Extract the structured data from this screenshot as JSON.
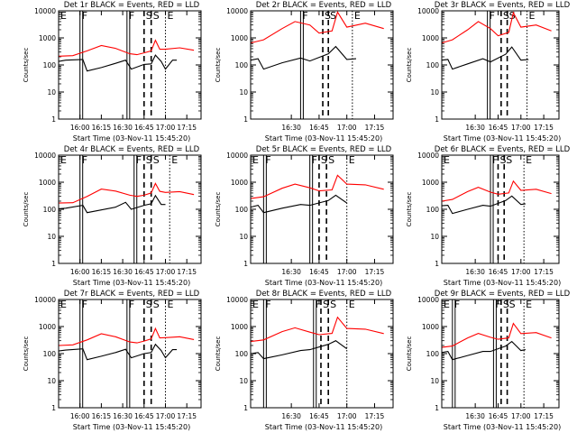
{
  "chart_data": [
    {
      "type": "line",
      "title": "Det 1r BLACK = Events, RED = LLD",
      "xlabel": "Start Time (03-Nov-11 15:45:20)",
      "ylabel": "Counts/sec",
      "x_ticks": [
        "16:00",
        "16:15",
        "16:30",
        "16:45",
        "17:00",
        "17:15"
      ],
      "y_ticks": [
        "1",
        "10",
        "100",
        "1000",
        "10000"
      ],
      "y_scale": "log",
      "ylim": [
        1,
        10000
      ],
      "markers": [
        {
          "text": "E",
          "time": "15:45"
        },
        {
          "text": "F",
          "time": "16:00"
        },
        {
          "text": "F",
          "time": "16:33"
        },
        {
          "text": "S",
          "time": "16:45"
        },
        {
          "text": "S",
          "time": "16:50"
        },
        {
          "text": "E",
          "time": "17:00"
        }
      ],
      "series": [
        {
          "name": "LLD",
          "color": "#ff0000",
          "x": [
            "15:45",
            "15:55",
            "16:05",
            "16:15",
            "16:25",
            "16:35",
            "16:40",
            "16:45",
            "16:50",
            "16:53",
            "16:56",
            "17:00",
            "17:10",
            "17:20"
          ],
          "y": [
            210,
            220,
            330,
            520,
            410,
            260,
            240,
            280,
            330,
            820,
            380,
            380,
            430,
            350
          ]
        },
        {
          "name": "Events",
          "color": "#000000",
          "x": [
            "15:45",
            "15:50",
            "16:02",
            "16:05",
            "16:15",
            "16:25",
            "16:32",
            "16:36",
            "16:45",
            "16:50",
            "16:53",
            "16:57",
            "17:00",
            "17:05",
            "17:08"
          ],
          "y": [
            135,
            150,
            160,
            60,
            80,
            115,
            150,
            70,
            105,
            110,
            230,
            135,
            70,
            150,
            150
          ]
        }
      ]
    },
    {
      "type": "line",
      "title": "Det 2r BLACK = Events, RED = LLD",
      "xlabel": "Start Time (03-Nov-11 15:45:20)",
      "ylabel": "Counts/sec",
      "x_ticks": [
        "16:30",
        "16:45",
        "17:00",
        "17:15"
      ],
      "y_ticks": [
        "1",
        "10",
        "100",
        "1000",
        "10000"
      ],
      "y_scale": "log",
      "ylim": [
        1,
        10000
      ],
      "markers": [
        {
          "text": "F",
          "time": "16:35"
        },
        {
          "text": "S",
          "time": "16:47"
        },
        {
          "text": "S",
          "time": "16:50"
        },
        {
          "text": "E",
          "time": "17:03"
        }
      ],
      "series": [
        {
          "name": "LLD",
          "color": "#ff0000",
          "x": [
            "16:08",
            "16:15",
            "16:25",
            "16:32",
            "16:40",
            "16:45",
            "16:52",
            "16:55",
            "17:00",
            "17:10",
            "17:20"
          ],
          "y": [
            650,
            850,
            2200,
            4000,
            3000,
            1500,
            1800,
            9000,
            2500,
            3500,
            2200
          ]
        },
        {
          "name": "Events",
          "color": "#000000",
          "x": [
            "16:08",
            "16:12",
            "16:15",
            "16:25",
            "16:35",
            "16:40",
            "16:50",
            "16:54",
            "17:00",
            "17:05"
          ],
          "y": [
            150,
            170,
            70,
            120,
            180,
            140,
            260,
            480,
            160,
            170
          ]
        }
      ]
    },
    {
      "type": "line",
      "title": "Det 3r BLACK = Events, RED = LLD",
      "xlabel": "Start Time (03-Nov-11 15:45:20)",
      "ylabel": "Counts/sec",
      "x_ticks": [
        "16:30",
        "16:45",
        "17:00",
        "17:15"
      ],
      "y_ticks": [
        "1",
        "10",
        "100",
        "1000",
        "10000"
      ],
      "y_scale": "log",
      "ylim": [
        1,
        10000
      ],
      "markers": [
        {
          "text": "F",
          "time": "16:38"
        },
        {
          "text": "S",
          "time": "16:47"
        },
        {
          "text": "S",
          "time": "16:51"
        },
        {
          "text": "E",
          "time": "17:04"
        }
      ],
      "series": [
        {
          "name": "LLD",
          "color": "#ff0000",
          "x": [
            "16:08",
            "16:15",
            "16:25",
            "16:32",
            "16:40",
            "16:45",
            "16:52",
            "16:55",
            "17:00",
            "17:10",
            "17:20"
          ],
          "y": [
            650,
            850,
            2000,
            4000,
            2200,
            1200,
            1600,
            8500,
            2500,
            3000,
            1800
          ]
        },
        {
          "name": "Events",
          "color": "#000000",
          "x": [
            "16:08",
            "16:12",
            "16:15",
            "16:25",
            "16:35",
            "16:40",
            "16:50",
            "16:54",
            "17:00",
            "17:05"
          ],
          "y": [
            150,
            160,
            70,
            110,
            170,
            130,
            250,
            460,
            150,
            160
          ]
        }
      ]
    },
    {
      "type": "line",
      "title": "Det 4r BLACK = Events, RED = LLD",
      "xlabel": "Start Time (03-Nov-11 15:45:20)",
      "ylabel": "Counts/sec",
      "x_ticks": [
        "16:00",
        "16:15",
        "16:30",
        "16:45",
        "17:00",
        "17:15"
      ],
      "y_ticks": [
        "1",
        "10",
        "100",
        "1000",
        "10000"
      ],
      "y_scale": "log",
      "ylim": [
        1,
        10000
      ],
      "markers": [
        {
          "text": "E",
          "time": "15:45"
        },
        {
          "text": "F",
          "time": "16:00"
        },
        {
          "text": "F",
          "time": "16:38"
        },
        {
          "text": "S",
          "time": "16:45"
        },
        {
          "text": "S",
          "time": "16:50"
        },
        {
          "text": "E",
          "time": "17:03"
        }
      ],
      "series": [
        {
          "name": "LLD",
          "color": "#ff0000",
          "x": [
            "15:45",
            "15:55",
            "16:05",
            "16:15",
            "16:25",
            "16:35",
            "16:40",
            "16:45",
            "16:50",
            "16:53",
            "16:56",
            "17:00",
            "17:10",
            "17:20"
          ],
          "y": [
            170,
            175,
            300,
            560,
            470,
            330,
            300,
            330,
            400,
            900,
            460,
            420,
            450,
            350
          ]
        },
        {
          "name": "Events",
          "color": "#000000",
          "x": [
            "15:45",
            "15:50",
            "16:02",
            "16:05",
            "16:15",
            "16:25",
            "16:32",
            "16:36",
            "16:45",
            "16:50",
            "16:53",
            "16:57",
            "17:00"
          ],
          "y": [
            105,
            110,
            140,
            75,
            95,
            120,
            180,
            100,
            140,
            160,
            320,
            150,
            150
          ]
        }
      ]
    },
    {
      "type": "line",
      "title": "Det 5r BLACK = Events, RED = LLD",
      "xlabel": "Start Time (03-Nov-11 15:45:20)",
      "ylabel": "Counts/sec",
      "x_ticks": [
        "16:30",
        "16:45",
        "17:00",
        "17:15"
      ],
      "y_ticks": [
        "1",
        "10",
        "100",
        "1000",
        "10000"
      ],
      "y_scale": "log",
      "ylim": [
        1,
        10000
      ],
      "markers": [
        {
          "text": "E",
          "time": "16:08"
        },
        {
          "text": "F",
          "time": "16:15"
        },
        {
          "text": "F",
          "time": "16:40"
        },
        {
          "text": "S",
          "time": "16:45"
        },
        {
          "text": "S",
          "time": "16:49"
        },
        {
          "text": "E",
          "time": "17:00"
        }
      ],
      "series": [
        {
          "name": "LLD",
          "color": "#ff0000",
          "x": [
            "16:08",
            "16:15",
            "16:25",
            "16:32",
            "16:40",
            "16:45",
            "16:52",
            "16:55",
            "17:00",
            "17:10",
            "17:20"
          ],
          "y": [
            250,
            290,
            600,
            850,
            620,
            480,
            520,
            1800,
            850,
            800,
            550
          ]
        },
        {
          "name": "Events",
          "color": "#000000",
          "x": [
            "16:08",
            "16:12",
            "16:15",
            "16:25",
            "16:35",
            "16:40",
            "16:50",
            "16:54",
            "17:00"
          ],
          "y": [
            120,
            140,
            75,
            110,
            150,
            140,
            210,
            330,
            170
          ]
        }
      ]
    },
    {
      "type": "line",
      "title": "Det 6r BLACK = Events, RED = LLD",
      "xlabel": "Start Time (03-Nov-11 15:45:20)",
      "ylabel": "Counts/sec",
      "x_ticks": [
        "16:30",
        "16:45",
        "17:00",
        "17:15"
      ],
      "y_ticks": [
        "1",
        "10",
        "100",
        "1000",
        "10000"
      ],
      "y_scale": "log",
      "ylim": [
        1,
        10000
      ],
      "markers": [
        {
          "text": "E",
          "time": "16:08"
        },
        {
          "text": "F",
          "time": "16:40"
        },
        {
          "text": "S",
          "time": "16:45"
        },
        {
          "text": "S",
          "time": "16:49"
        },
        {
          "text": "E",
          "time": "17:02"
        }
      ],
      "series": [
        {
          "name": "LLD",
          "color": "#ff0000",
          "x": [
            "16:08",
            "16:15",
            "16:25",
            "16:32",
            "16:40",
            "16:45",
            "16:52",
            "16:55",
            "17:00",
            "17:10",
            "17:20"
          ],
          "y": [
            200,
            230,
            450,
            650,
            430,
            360,
            400,
            1100,
            500,
            550,
            380
          ]
        },
        {
          "name": "Events",
          "color": "#000000",
          "x": [
            "16:08",
            "16:12",
            "16:15",
            "16:25",
            "16:35",
            "16:40",
            "16:50",
            "16:54",
            "17:00",
            "17:03"
          ],
          "y": [
            135,
            140,
            70,
            100,
            140,
            130,
            210,
            310,
            150,
            160
          ]
        }
      ]
    },
    {
      "type": "line",
      "title": "Det 7r BLACK = Events, RED = LLD",
      "xlabel": "Start Time (03-Nov-11 15:45:20)",
      "ylabel": "Counts/sec",
      "x_ticks": [
        "16:00",
        "16:15",
        "16:30",
        "16:45",
        "17:00",
        "17:15"
      ],
      "y_ticks": [
        "1",
        "10",
        "100",
        "1000",
        "10000"
      ],
      "y_scale": "log",
      "ylim": [
        1,
        10000
      ],
      "markers": [
        {
          "text": "E",
          "time": "15:45"
        },
        {
          "text": "F",
          "time": "16:00"
        },
        {
          "text": "F",
          "time": "16:33"
        },
        {
          "text": "S",
          "time": "16:45"
        },
        {
          "text": "S",
          "time": "16:50"
        },
        {
          "text": "E",
          "time": "17:00"
        }
      ],
      "series": [
        {
          "name": "LLD",
          "color": "#ff0000",
          "x": [
            "15:45",
            "15:55",
            "16:05",
            "16:15",
            "16:25",
            "16:35",
            "16:40",
            "16:45",
            "16:50",
            "16:53",
            "16:56",
            "17:00",
            "17:10",
            "17:20"
          ],
          "y": [
            200,
            210,
            320,
            540,
            420,
            270,
            250,
            290,
            350,
            850,
            380,
            390,
            420,
            330
          ]
        },
        {
          "name": "Events",
          "color": "#000000",
          "x": [
            "15:45",
            "15:50",
            "16:02",
            "16:05",
            "16:15",
            "16:25",
            "16:32",
            "16:36",
            "16:45",
            "16:50",
            "16:53",
            "16:57",
            "17:00",
            "17:05",
            "17:08"
          ],
          "y": [
            125,
            135,
            150,
            60,
            80,
            110,
            145,
            70,
            100,
            110,
            220,
            130,
            70,
            140,
            140
          ]
        }
      ]
    },
    {
      "type": "line",
      "title": "Det 8r BLACK = Events, RED = LLD",
      "xlabel": "Start Time (03-Nov-11 15:45:20)",
      "ylabel": "Counts/sec",
      "x_ticks": [
        "16:30",
        "16:45",
        "17:00",
        "17:15"
      ],
      "y_ticks": [
        "1",
        "10",
        "100",
        "1000",
        "10000"
      ],
      "y_scale": "log",
      "ylim": [
        1,
        10000
      ],
      "markers": [
        {
          "text": "E",
          "time": "16:08"
        },
        {
          "text": "F",
          "time": "16:15"
        },
        {
          "text": "F",
          "time": "16:42"
        },
        {
          "text": "S",
          "time": "16:46"
        },
        {
          "text": "S",
          "time": "16:50"
        },
        {
          "text": "E",
          "time": "17:00"
        }
      ],
      "series": [
        {
          "name": "LLD",
          "color": "#ff0000",
          "x": [
            "16:08",
            "16:15",
            "16:25",
            "16:32",
            "16:40",
            "16:45",
            "16:52",
            "16:55",
            "17:00",
            "17:10",
            "17:20"
          ],
          "y": [
            280,
            320,
            650,
            900,
            620,
            500,
            560,
            2200,
            850,
            800,
            550
          ]
        },
        {
          "name": "Events",
          "color": "#000000",
          "x": [
            "16:08",
            "16:12",
            "16:15",
            "16:25",
            "16:35",
            "16:40",
            "16:50",
            "16:54",
            "17:00"
          ],
          "y": [
            100,
            110,
            65,
            90,
            130,
            140,
            220,
            300,
            150
          ]
        }
      ]
    },
    {
      "type": "line",
      "title": "Det 9r BLACK = Events, RED = LLD",
      "xlabel": "Start Time (03-Nov-11 15:45:20)",
      "ylabel": "Counts/sec",
      "x_ticks": [
        "16:30",
        "16:45",
        "17:00",
        "17:15"
      ],
      "y_ticks": [
        "1",
        "10",
        "100",
        "1000",
        "10000"
      ],
      "y_scale": "log",
      "ylim": [
        1,
        10000
      ],
      "markers": [
        {
          "text": "E",
          "time": "16:08"
        },
        {
          "text": "F",
          "time": "16:15"
        },
        {
          "text": "F",
          "time": "16:42"
        },
        {
          "text": "S",
          "time": "16:47"
        },
        {
          "text": "S",
          "time": "16:51"
        },
        {
          "text": "E",
          "time": "17:02"
        }
      ],
      "series": [
        {
          "name": "LLD",
          "color": "#ff0000",
          "x": [
            "16:08",
            "16:15",
            "16:25",
            "16:32",
            "16:40",
            "16:45",
            "16:52",
            "16:55",
            "17:00",
            "17:10",
            "17:20"
          ],
          "y": [
            170,
            190,
            380,
            560,
            400,
            340,
            380,
            1300,
            550,
            600,
            380
          ]
        },
        {
          "name": "Events",
          "color": "#000000",
          "x": [
            "16:08",
            "16:12",
            "16:15",
            "16:25",
            "16:35",
            "16:40",
            "16:50",
            "16:54",
            "17:00",
            "17:03"
          ],
          "y": [
            110,
            120,
            60,
            85,
            120,
            120,
            190,
            280,
            130,
            140
          ]
        }
      ]
    }
  ]
}
